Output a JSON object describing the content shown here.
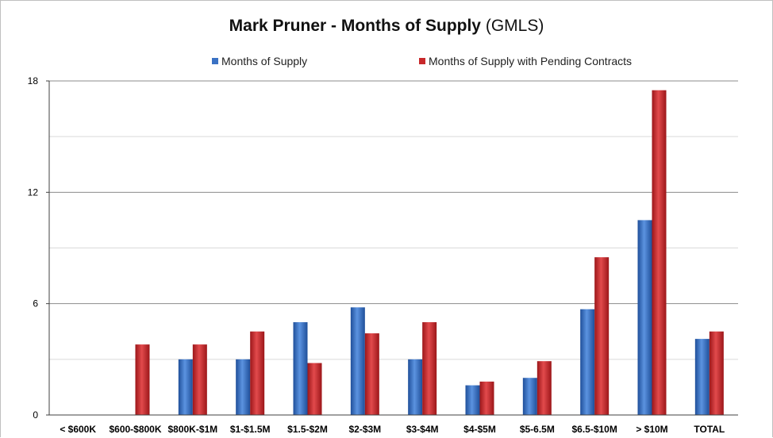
{
  "chart_data": {
    "type": "bar",
    "title": "Mark Pruner - Months of Supply",
    "subtitle": "(GMLS)",
    "categories": [
      "< $600K",
      "$600-$800K",
      "$800K-$1M",
      "$1-$1.5M",
      "$1.5-$2M",
      "$2-$3M",
      "$3-$4M",
      "$4-$5M",
      "$5-6.5M",
      "$6.5-$10M",
      "> $10M",
      "TOTAL"
    ],
    "series": [
      {
        "name": "Months of Supply",
        "color": "#3a72c4",
        "values": [
          null,
          null,
          3.0,
          3.0,
          5.0,
          5.8,
          3.0,
          1.6,
          2.0,
          5.7,
          10.5,
          4.1
        ]
      },
      {
        "name": "Months of Supply with Pending Contracts",
        "color": "#c8282a",
        "values": [
          null,
          3.8,
          3.8,
          4.5,
          2.8,
          4.4,
          5.0,
          1.8,
          2.9,
          8.5,
          17.5,
          4.5
        ]
      }
    ],
    "ylim": [
      0,
      18
    ],
    "yticks": [
      "0",
      "6",
      "12",
      "18"
    ],
    "xlabel": "",
    "ylabel": "",
    "legend_position": "top",
    "grid": true
  }
}
